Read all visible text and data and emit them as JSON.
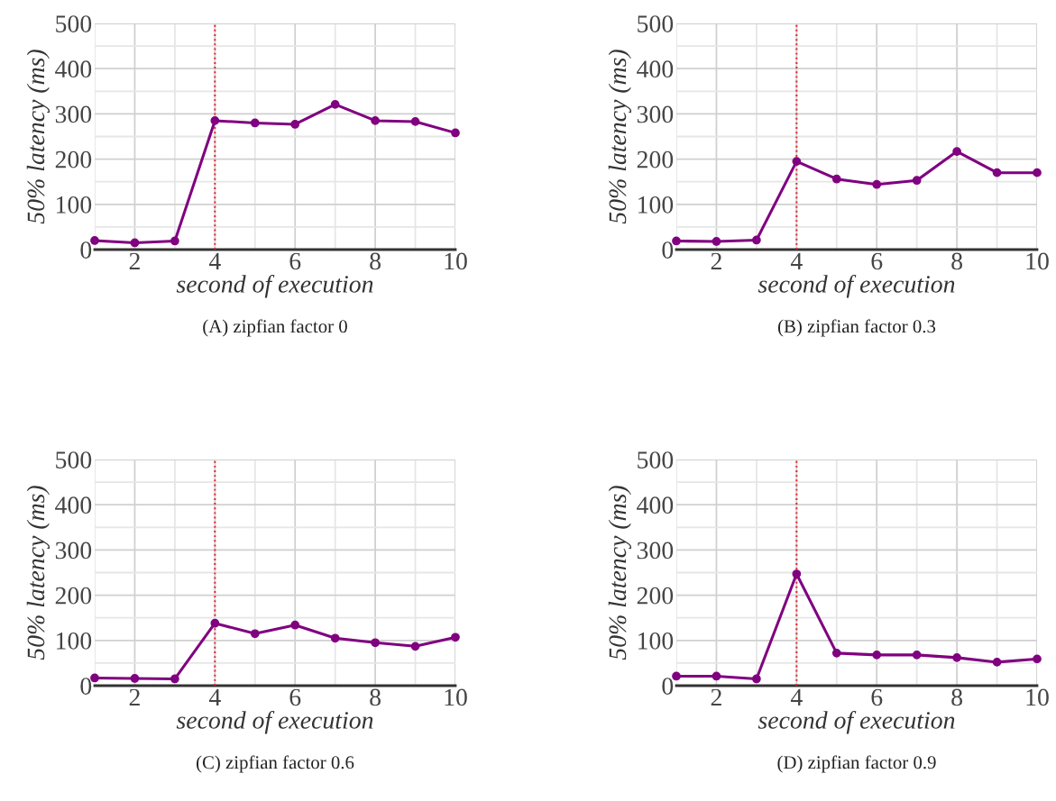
{
  "chart_data": [
    {
      "type": "line",
      "title": "(A) zipfian factor 0",
      "xlabel": "second of execution",
      "ylabel": "50% latency (ms)",
      "x": [
        1,
        2,
        3,
        4,
        5,
        6,
        7,
        8,
        9,
        10
      ],
      "series": [
        {
          "color": "#800080",
          "values": [
            20,
            15,
            19,
            285,
            280,
            277,
            321,
            285,
            283,
            258
          ]
        }
      ],
      "xlim": [
        1,
        10
      ],
      "ylim": [
        0,
        500
      ],
      "xticks": [
        {
          "value": 1,
          "label": null
        },
        2,
        {
          "value": 3,
          "label": null
        },
        4,
        {
          "value": 5,
          "label": null
        },
        6,
        {
          "value": 7,
          "label": null
        },
        8,
        {
          "value": 9,
          "label": null
        },
        10
      ],
      "yticks": [
        0,
        {
          "value": 50,
          "label": null
        },
        100,
        {
          "value": 150,
          "label": null
        },
        200,
        {
          "value": 250,
          "label": null
        },
        300,
        {
          "value": 350,
          "label": null
        },
        400,
        {
          "value": 450,
          "label": null
        },
        500
      ],
      "grid": true,
      "marker": "circle",
      "line_style": "solid",
      "ref_lines": [
        {
          "axis": "x",
          "value": 4,
          "color": "#e8202a",
          "line_style": "dotted"
        }
      ]
    },
    {
      "type": "line",
      "title": "(B) zipfian factor 0.3",
      "xlabel": "second of execution",
      "ylabel": "50% latency (ms)",
      "x": [
        1,
        2,
        3,
        4,
        5,
        6,
        7,
        8,
        9,
        10
      ],
      "series": [
        {
          "color": "#800080",
          "values": [
            19,
            18,
            21,
            195,
            156,
            144,
            153,
            217,
            170,
            170
          ]
        }
      ],
      "xlim": [
        1,
        10
      ],
      "ylim": [
        0,
        500
      ],
      "xticks": [
        {
          "value": 1,
          "label": null
        },
        2,
        {
          "value": 3,
          "label": null
        },
        4,
        {
          "value": 5,
          "label": null
        },
        6,
        {
          "value": 7,
          "label": null
        },
        8,
        {
          "value": 9,
          "label": null
        },
        10
      ],
      "yticks": [
        0,
        {
          "value": 50,
          "label": null
        },
        100,
        {
          "value": 150,
          "label": null
        },
        200,
        {
          "value": 250,
          "label": null
        },
        300,
        {
          "value": 350,
          "label": null
        },
        400,
        {
          "value": 450,
          "label": null
        },
        500
      ],
      "grid": true,
      "marker": "circle",
      "line_style": "solid",
      "ref_lines": [
        {
          "axis": "x",
          "value": 4,
          "color": "#e8202a",
          "line_style": "dotted"
        }
      ]
    },
    {
      "type": "line",
      "title": "(C) zipfian factor 0.6",
      "xlabel": "second of execution",
      "ylabel": "50% latency (ms)",
      "x": [
        1,
        2,
        3,
        4,
        5,
        6,
        7,
        8,
        9,
        10
      ],
      "series": [
        {
          "color": "#800080",
          "values": [
            17,
            16,
            15,
            138,
            115,
            134,
            105,
            95,
            87,
            107
          ]
        }
      ],
      "xlim": [
        1,
        10
      ],
      "ylim": [
        0,
        500
      ],
      "xticks": [
        {
          "value": 1,
          "label": null
        },
        2,
        {
          "value": 3,
          "label": null
        },
        4,
        {
          "value": 5,
          "label": null
        },
        6,
        {
          "value": 7,
          "label": null
        },
        8,
        {
          "value": 9,
          "label": null
        },
        10
      ],
      "yticks": [
        0,
        {
          "value": 50,
          "label": null
        },
        100,
        {
          "value": 150,
          "label": null
        },
        200,
        {
          "value": 250,
          "label": null
        },
        300,
        {
          "value": 350,
          "label": null
        },
        400,
        {
          "value": 450,
          "label": null
        },
        500
      ],
      "grid": true,
      "marker": "circle",
      "line_style": "solid",
      "ref_lines": [
        {
          "axis": "x",
          "value": 4,
          "color": "#e8202a",
          "line_style": "dotted"
        }
      ]
    },
    {
      "type": "line",
      "title": "(D) zipfian factor 0.9",
      "xlabel": "second of execution",
      "ylabel": "50% latency (ms)",
      "x": [
        1,
        2,
        3,
        4,
        5,
        6,
        7,
        8,
        9,
        10
      ],
      "series": [
        {
          "color": "#800080",
          "values": [
            21,
            21,
            15,
            247,
            72,
            68,
            68,
            62,
            52,
            59
          ]
        }
      ],
      "xlim": [
        1,
        10
      ],
      "ylim": [
        0,
        500
      ],
      "xticks": [
        {
          "value": 1,
          "label": null
        },
        2,
        {
          "value": 3,
          "label": null
        },
        4,
        {
          "value": 5,
          "label": null
        },
        6,
        {
          "value": 7,
          "label": null
        },
        8,
        {
          "value": 9,
          "label": null
        },
        10
      ],
      "yticks": [
        0,
        {
          "value": 50,
          "label": null
        },
        100,
        {
          "value": 150,
          "label": null
        },
        200,
        {
          "value": 250,
          "label": null
        },
        300,
        {
          "value": 350,
          "label": null
        },
        400,
        {
          "value": 450,
          "label": null
        },
        500
      ],
      "grid": true,
      "marker": "circle",
      "line_style": "solid",
      "ref_lines": [
        {
          "axis": "x",
          "value": 4,
          "color": "#e8202a",
          "line_style": "dotted"
        }
      ]
    }
  ]
}
